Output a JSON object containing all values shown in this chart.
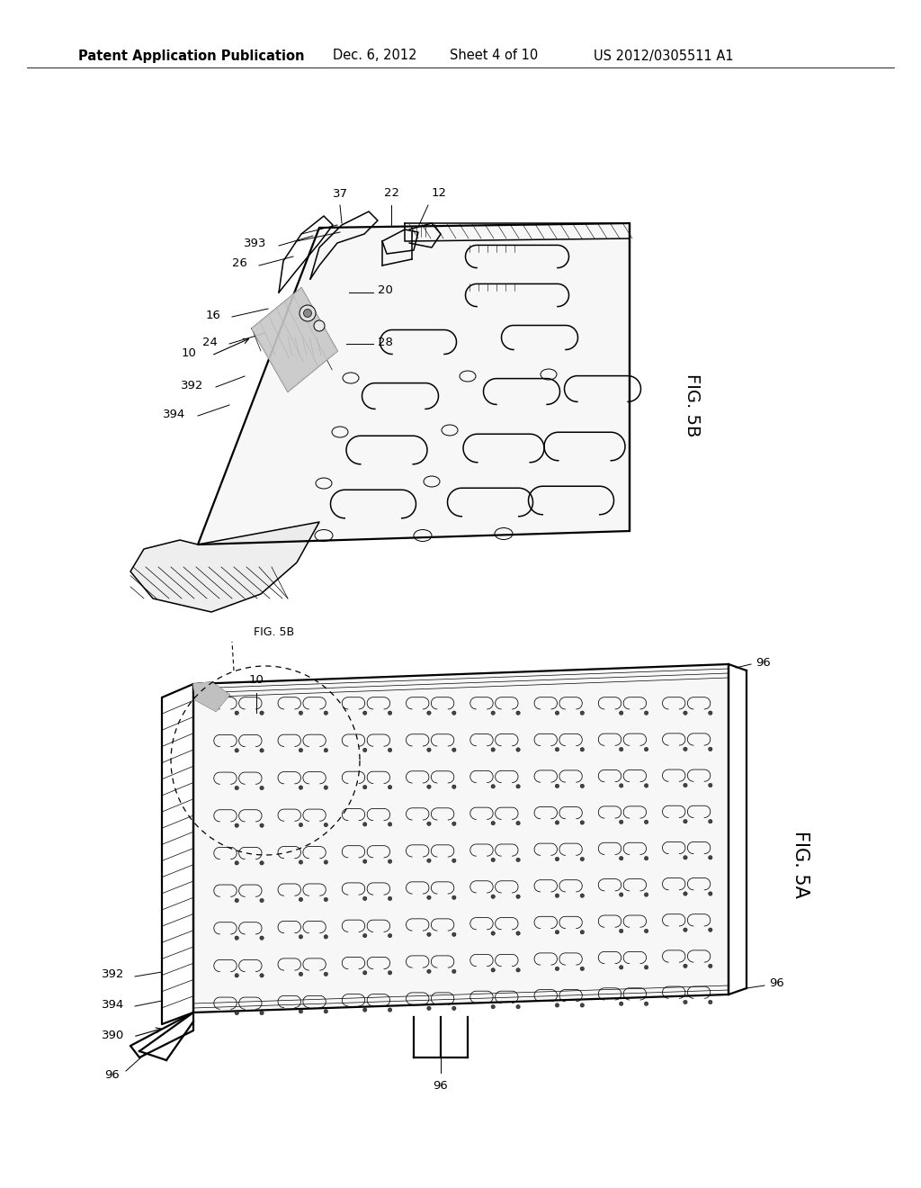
{
  "bg_color": "#ffffff",
  "line_color": "#000000",
  "header_left": "Patent Application Publication",
  "header_mid": "Dec. 6, 2012   Sheet 4 of 10",
  "header_right": "US 2012/0305511 A1",
  "fig_label_top": "FIG. 5B",
  "fig_label_bot": "FIG. 5A",
  "header_font_size": 10.5,
  "anno_font_size": 9.5
}
